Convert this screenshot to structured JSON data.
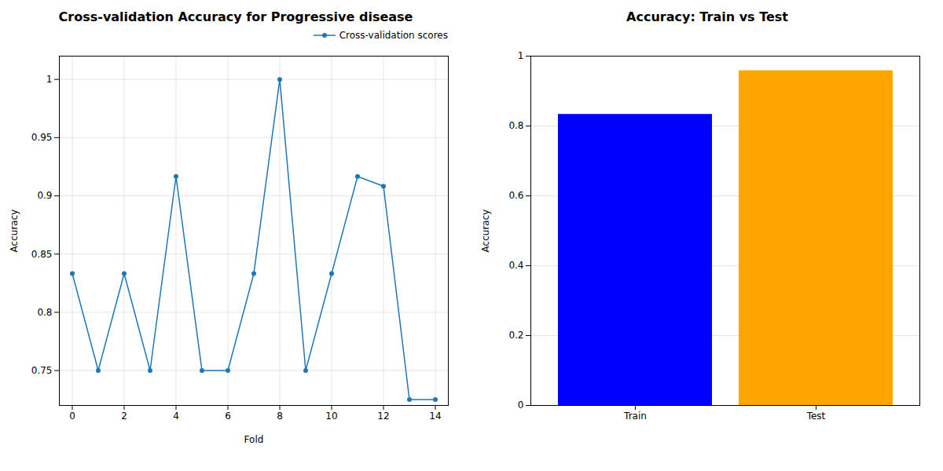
{
  "chart_data": [
    {
      "type": "line",
      "title": "Cross-validation Accuracy for Progressive disease",
      "xlabel": "Fold",
      "ylabel": "Accuracy",
      "x": [
        0,
        1,
        2,
        3,
        4,
        5,
        6,
        7,
        8,
        9,
        10,
        11,
        12,
        13,
        14
      ],
      "series": [
        {
          "name": "Cross-validation scores",
          "color": "#1f77b4",
          "marker": "o",
          "values": [
            0.8333,
            0.75,
            0.8333,
            0.75,
            0.9167,
            0.75,
            0.75,
            0.8333,
            1.0,
            0.75,
            0.8333,
            0.9167,
            0.9083,
            0.725,
            0.725
          ]
        }
      ],
      "xlim": [
        -0.5,
        14.5
      ],
      "xticks": [
        0,
        2,
        4,
        6,
        8,
        10,
        12,
        14
      ],
      "ylim": [
        0.72,
        1.02
      ],
      "yticks": [
        0.75,
        0.8,
        0.85,
        0.9,
        0.95,
        1
      ],
      "grid": true,
      "legend": "upper right"
    },
    {
      "type": "bar",
      "title": "Accuracy: Train vs Test",
      "ylabel": "Accuracy",
      "categories": [
        "Train",
        "Test"
      ],
      "values": [
        0.8333,
        0.9583
      ],
      "colors": [
        "#0000ff",
        "#ffa500"
      ],
      "ylim": [
        0,
        1
      ],
      "yticks": [
        0,
        0.2,
        0.4,
        0.6,
        0.8,
        1
      ],
      "grid": true
    }
  ]
}
